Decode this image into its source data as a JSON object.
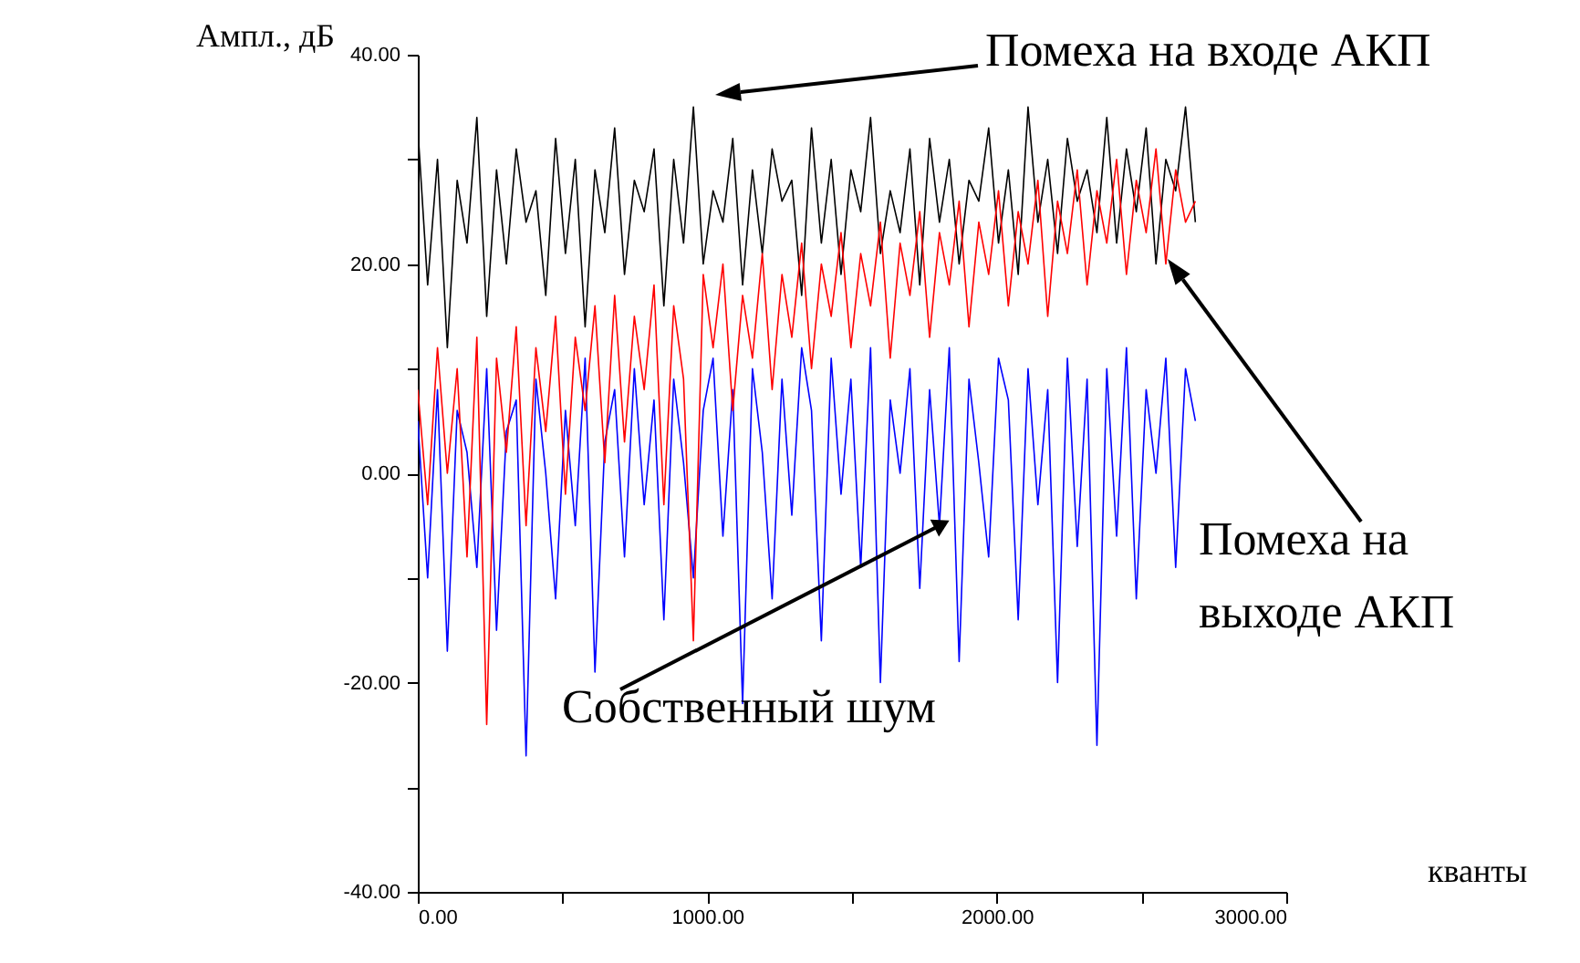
{
  "chart_data": {
    "type": "line",
    "xlabel": "кванты",
    "ylabel": "Ампл., дБ",
    "annotations": [
      "Помеха на входе АКП",
      "Помеха на\nвыходе АКП",
      {
        "text": "Собственный шум",
        "x": 1802,
        "y": -5
      }
    ],
    "x": [
      0,
      34,
      68,
      102,
      136,
      170,
      204,
      238,
      272,
      306,
      340,
      374,
      408,
      442,
      476,
      510,
      544,
      578,
      612,
      646,
      680,
      714,
      748,
      782,
      816,
      850,
      884,
      918,
      952,
      986,
      1020,
      1054,
      1088,
      1122,
      1156,
      1190,
      1224,
      1258,
      1292,
      1326,
      1360,
      1394,
      1428,
      1462,
      1496,
      1530,
      1564,
      1598,
      1632,
      1666,
      1700,
      1734,
      1768,
      1802,
      1836,
      1870,
      1904,
      1938,
      1972,
      2006,
      2040,
      2074,
      2108,
      2142,
      2176,
      2210,
      2244,
      2278,
      2312,
      2346,
      2380,
      2414,
      2448,
      2482,
      2516,
      2550,
      2584,
      2618,
      2652,
      2686
    ],
    "series": [
      {
        "color": "#0000ff",
        "values": [
          5,
          -10,
          8,
          -17,
          6,
          2,
          -9,
          10,
          -15,
          4,
          7,
          -27,
          9,
          0,
          -12,
          6,
          -5,
          11,
          -19,
          3,
          8,
          -8,
          10,
          -3,
          7,
          -14,
          9,
          1,
          -10,
          6,
          11,
          -6,
          8,
          -22,
          10,
          2,
          -12,
          9,
          -4,
          12,
          6,
          -16,
          11,
          -2,
          9,
          -9,
          12,
          -20,
          7,
          0,
          10,
          -11,
          8,
          -5,
          12,
          -18,
          9,
          1,
          -8,
          11,
          7,
          -14,
          10,
          -3,
          8,
          -20,
          11,
          -7,
          9,
          -26,
          10,
          -6,
          12,
          -12,
          8,
          0,
          11,
          -9,
          10,
          5
        ]
      },
      {
        "color": "#000000",
        "values": [
          33,
          18,
          30,
          12,
          28,
          22,
          34,
          15,
          29,
          20,
          31,
          24,
          27,
          17,
          32,
          21,
          30,
          14,
          29,
          23,
          33,
          19,
          28,
          25,
          31,
          16,
          30,
          22,
          35,
          20,
          27,
          24,
          32,
          18,
          29,
          21,
          31,
          26,
          28,
          17,
          33,
          22,
          30,
          19,
          29,
          25,
          34,
          21,
          27,
          23,
          31,
          18,
          32,
          24,
          30,
          20,
          28,
          26,
          33,
          22,
          29,
          19,
          35,
          24,
          30,
          21,
          32,
          26,
          29,
          23,
          34,
          22,
          31,
          25,
          33,
          20,
          30,
          27,
          35,
          24
        ]
      },
      {
        "color": "#ff0000",
        "values": [
          8,
          -3,
          12,
          0,
          10,
          -8,
          13,
          -24,
          11,
          2,
          14,
          -5,
          12,
          4,
          15,
          -2,
          13,
          6,
          16,
          1,
          17,
          3,
          15,
          8,
          18,
          -3,
          16,
          9,
          -16,
          19,
          12,
          20,
          6,
          17,
          11,
          21,
          8,
          19,
          13,
          22,
          10,
          20,
          15,
          23,
          12,
          21,
          16,
          24,
          11,
          22,
          17,
          25,
          13,
          23,
          18,
          26,
          14,
          24,
          19,
          27,
          16,
          25,
          20,
          28,
          15,
          26,
          21,
          29,
          18,
          27,
          22,
          30,
          19,
          28,
          23,
          31,
          20,
          29,
          24,
          26
        ]
      }
    ],
    "xlim": [
      0,
      3000
    ],
    "xticks": [
      {
        "value": 0,
        "label": "0.00"
      },
      {
        "value": 500,
        "label": null
      },
      {
        "value": 1000,
        "label": "1000.00"
      },
      {
        "value": 1500,
        "label": null
      },
      {
        "value": 2000,
        "label": "2000.00"
      },
      {
        "value": 2500,
        "label": null
      },
      {
        "value": 3000,
        "label": "3000.00"
      }
    ],
    "ylim": [
      -40,
      40
    ],
    "yticks": [
      {
        "value": -40,
        "label": "-40.00"
      },
      {
        "value": -30,
        "label": null
      },
      {
        "value": -20,
        "label": "-20.00"
      },
      {
        "value": -10,
        "label": null
      },
      {
        "value": 0,
        "label": "0.00"
      },
      {
        "value": 10,
        "label": null
      },
      {
        "value": 20,
        "label": "20.00"
      },
      {
        "value": 30,
        "label": null
      },
      {
        "value": 40,
        "label": "40.00"
      }
    ],
    "grid": false,
    "legend": false,
    "marker": "none",
    "line_style": "solid"
  }
}
